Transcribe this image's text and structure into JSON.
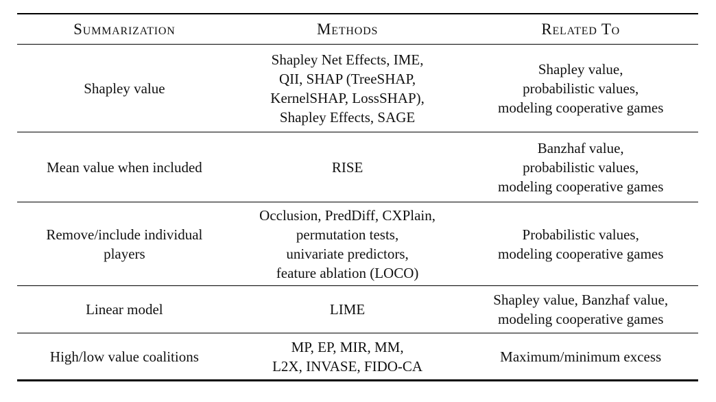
{
  "page": {
    "background_color": "#ffffff",
    "text_color": "#111111",
    "rule_color": "#000000"
  },
  "table": {
    "columns": [
      {
        "id": "summarization",
        "label": "Summarization"
      },
      {
        "id": "methods",
        "label": "Methods"
      },
      {
        "id": "related_to",
        "label": "Related To"
      }
    ],
    "rows": [
      {
        "summarization": "Shapley value",
        "methods": "Shapley Net Effects, IME,\nQII, SHAP (TreeSHAP,\nKernelSHAP, LossSHAP),\nShapley Effects, SAGE",
        "related_to": "Shapley value,\nprobabilistic values,\nmodeling cooperative games"
      },
      {
        "summarization": "Mean value when included",
        "methods": "RISE",
        "related_to": "Banzhaf value,\nprobabilistic values,\nmodeling cooperative games"
      },
      {
        "summarization": "Remove/include individual\nplayers",
        "methods": "Occlusion, PredDiff, CXPlain,\npermutation tests,\nunivariate predictors,\nfeature ablation (LOCO)",
        "related_to": "Probabilistic values,\nmodeling cooperative games"
      },
      {
        "summarization": "Linear model",
        "methods": "LIME",
        "related_to": "Shapley value, Banzhaf value,\nmodeling cooperative games"
      },
      {
        "summarization": "High/low value coalitions",
        "methods": "MP, EP, MIR, MM,\nL2X, INVASE, FIDO-CA",
        "related_to": "Maximum/minimum excess"
      }
    ]
  }
}
